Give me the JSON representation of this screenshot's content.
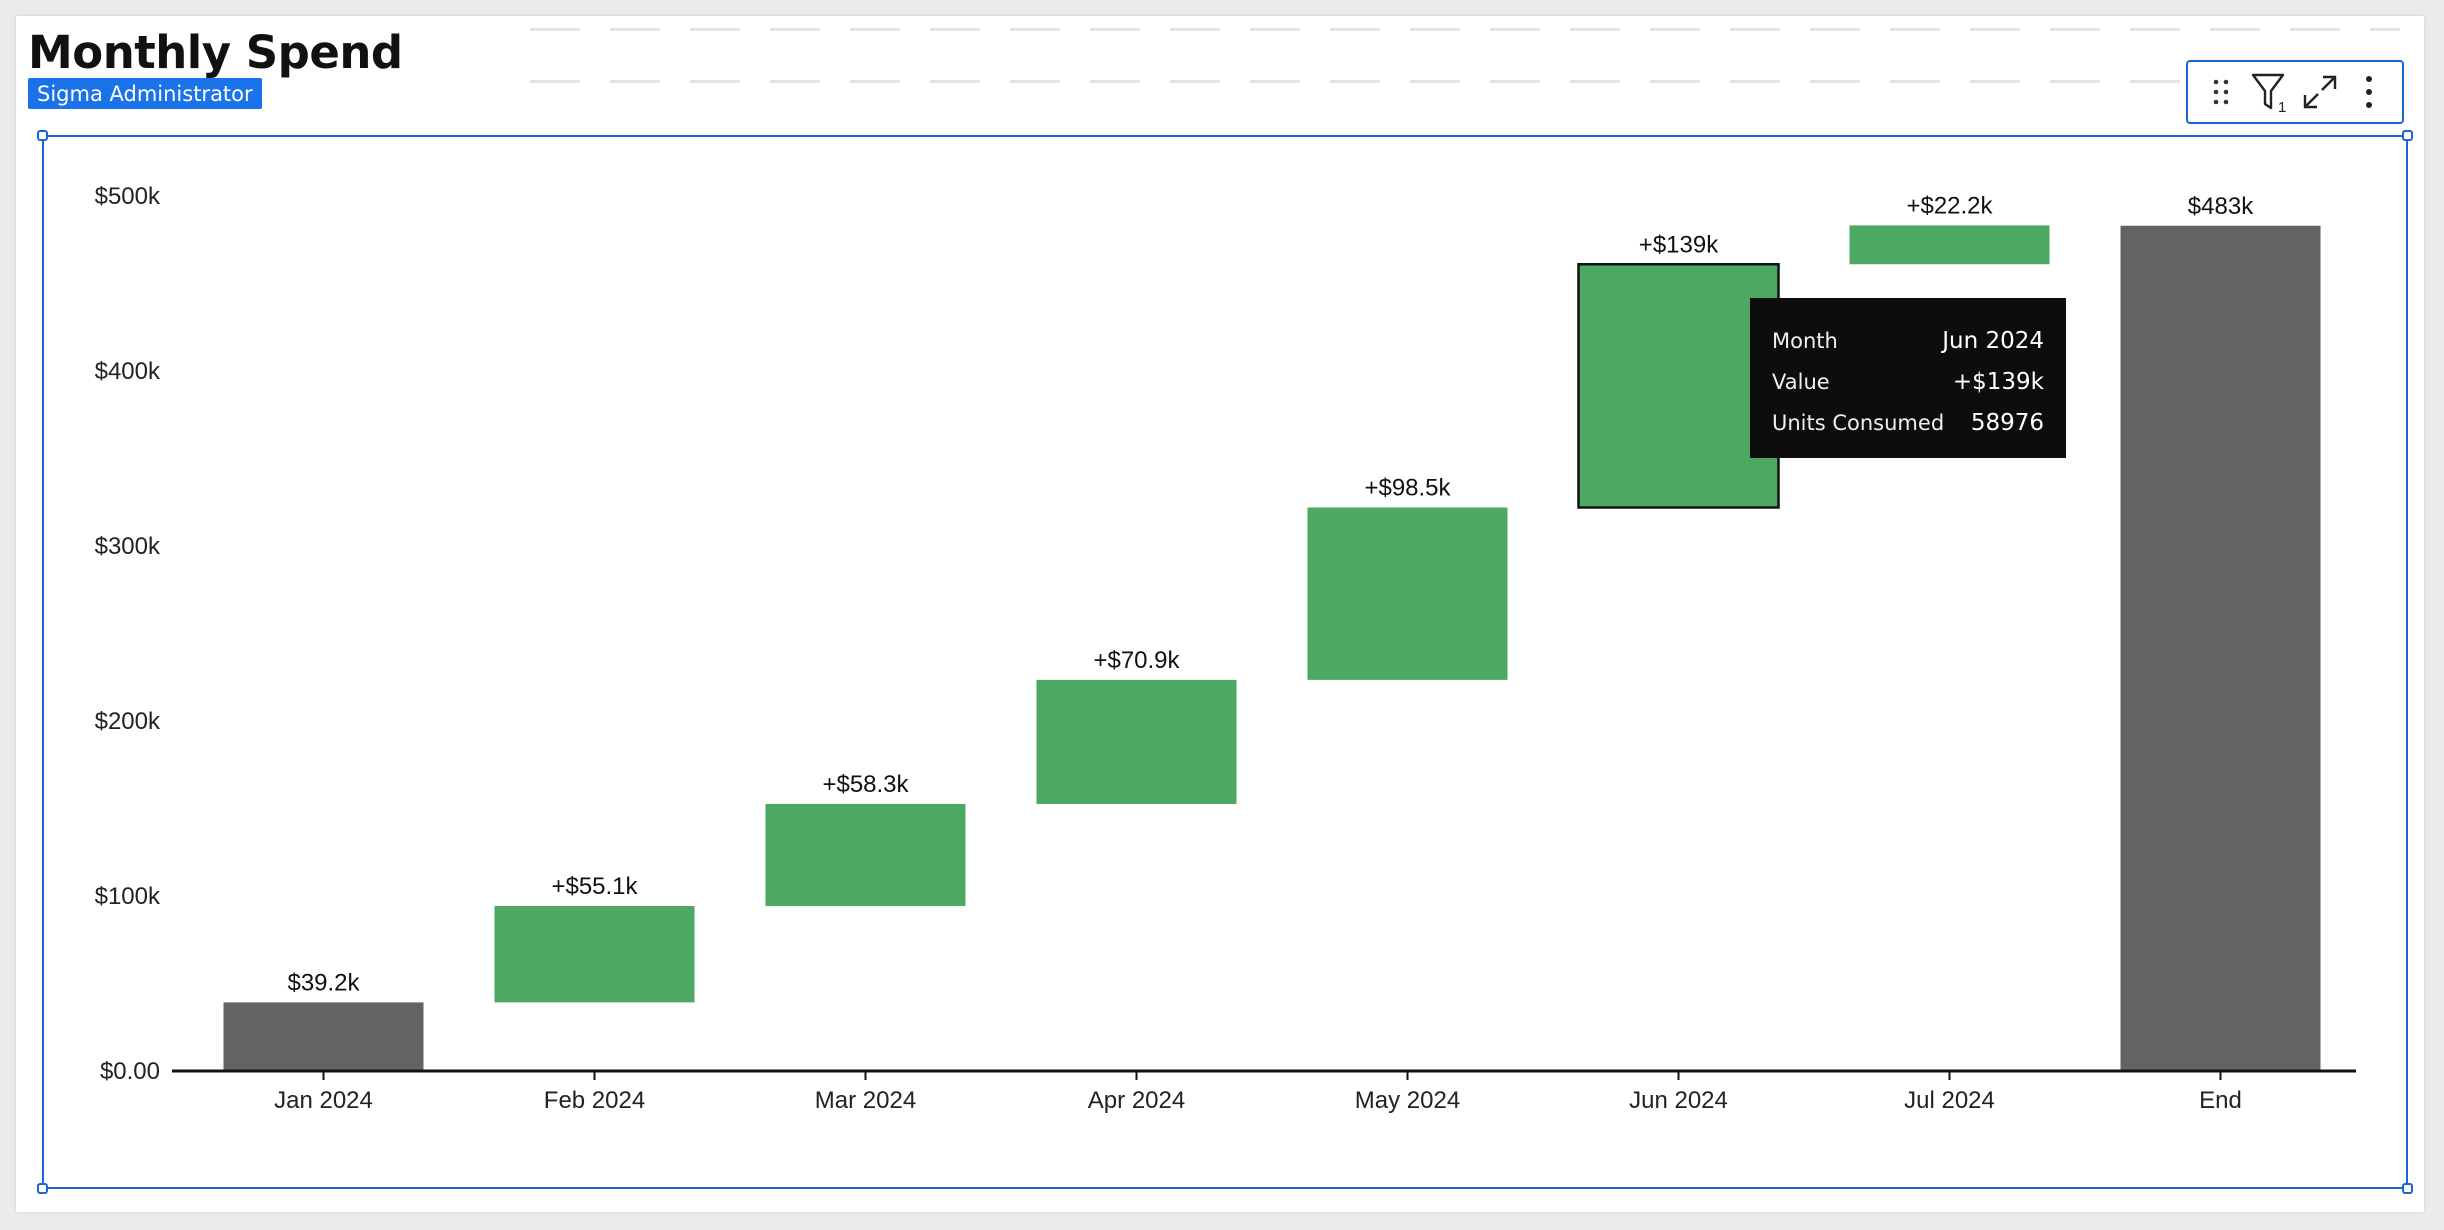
{
  "header": {
    "title": "Monthly Spend",
    "badge": "Sigma Administrator"
  },
  "toolbar": {
    "filter_count": "1",
    "icons": [
      "drag-handle-icon",
      "filter-icon",
      "expand-icon",
      "more-vertical-icon"
    ]
  },
  "chart_data": {
    "type": "waterfall",
    "title": "",
    "xlabel": "",
    "ylabel": "",
    "categories": [
      "Jan 2024",
      "Feb 2024",
      "Mar 2024",
      "Apr 2024",
      "May 2024",
      "Jun 2024",
      "Jul 2024",
      "End"
    ],
    "values": [
      39.2,
      55.1,
      58.3,
      70.9,
      98.5,
      139,
      22.2,
      483
    ],
    "value_unit": "thousand USD",
    "kinds": [
      "total",
      "increase",
      "increase",
      "increase",
      "increase",
      "increase",
      "increase",
      "total"
    ],
    "data_labels": [
      "$39.2k",
      "+$55.1k",
      "+$58.3k",
      "+$70.9k",
      "+$98.5k",
      "+$139k",
      "+$22.2k",
      "$483k"
    ],
    "y_ticks": [
      0,
      100,
      200,
      300,
      400,
      500
    ],
    "y_tick_labels": [
      "$0.00",
      "$100k",
      "$200k",
      "$300k",
      "$400k",
      "$500k"
    ],
    "ylim": [
      0,
      500
    ],
    "grid": false,
    "colors": {
      "total": "#636363",
      "increase": "#4ca862",
      "axis": "#111111",
      "selected_outline": "#111111"
    },
    "selected_category": "Jun 2024"
  },
  "tooltip": {
    "rows": [
      {
        "key": "Month",
        "value": "Jun 2024"
      },
      {
        "key": "Value",
        "value": "+$139k"
      },
      {
        "key": "Units Consumed",
        "value": "58976"
      }
    ]
  }
}
